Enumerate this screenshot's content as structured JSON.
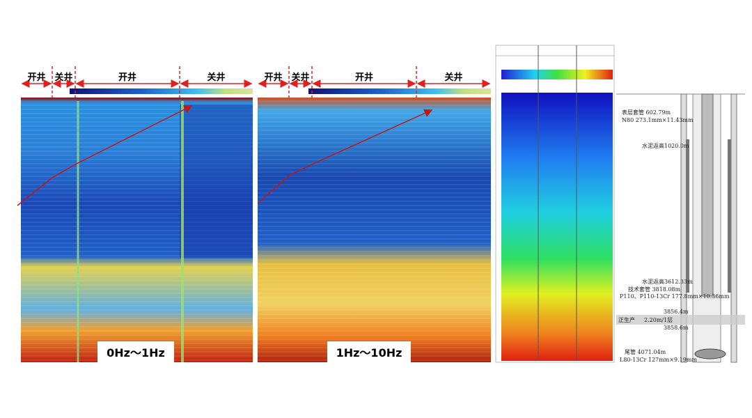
{
  "panels": [
    {
      "segments": [
        "开井",
        "关井",
        "开井",
        "关井"
      ],
      "band": "0Hz～1Hz"
    },
    {
      "segments": [
        "开井",
        "关井",
        "开井",
        "关井"
      ],
      "band": "1Hz～10Hz"
    }
  ],
  "well": {
    "labels": [
      "表层套管 602.79m",
      "N80 273.1mm×11.43mm",
      "水泥返高1020.0m",
      "水泥返高3612.33m",
      "技术套管 3818.08m",
      "P110、P110-13Cr 177.8mm×10.36mm",
      "3856.4m",
      "正生产",
      "2.20m/1层",
      "3858.6m",
      "尾管 4071.04m",
      "L80-13Cr 127mm×9.19mm"
    ]
  }
}
